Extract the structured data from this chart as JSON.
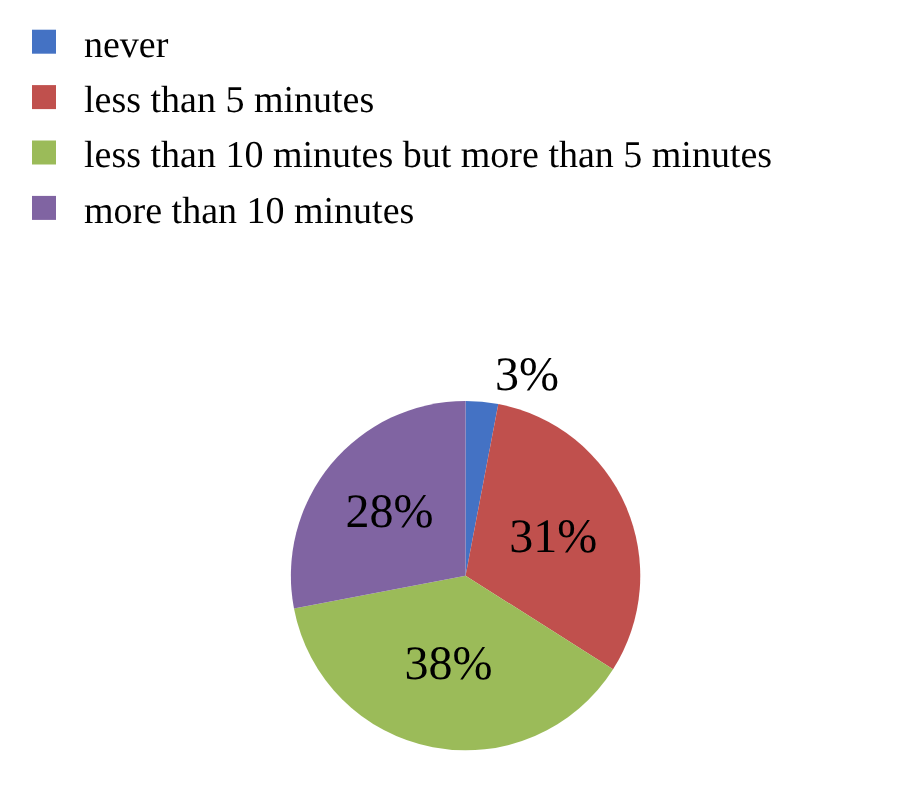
{
  "chart_data": {
    "type": "pie",
    "categories": [
      "never",
      "less than 5 minutes",
      "less than 10 minutes but more than 5 minutes",
      "more than 10 minutes"
    ],
    "values": [
      3,
      31,
      38,
      28
    ],
    "value_labels": [
      "3%",
      "31%",
      "38%",
      "28%"
    ],
    "colors": [
      "#4472c4",
      "#c0504d",
      "#9bbb59",
      "#8064a2"
    ],
    "legend": "top left"
  }
}
